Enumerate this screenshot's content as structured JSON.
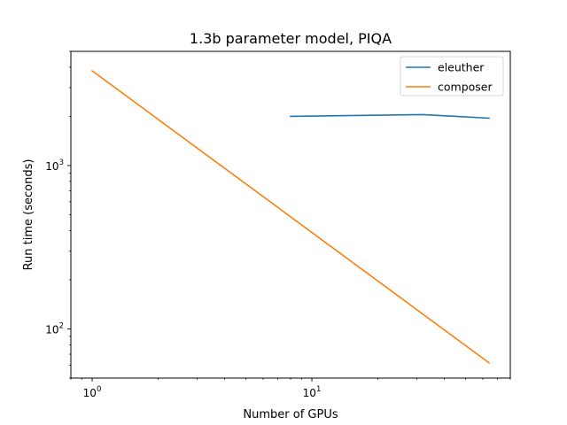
{
  "chart_data": {
    "type": "line",
    "title": "1.3b parameter model, PIQA",
    "xlabel": "Number of GPUs",
    "ylabel": "Run time (seconds)",
    "xscale": "log",
    "yscale": "log",
    "xlim": [
      0.8,
      80
    ],
    "ylim": [
      50,
      5000
    ],
    "grid": false,
    "legend_position": "top-right",
    "x_ticks": [
      {
        "value": 1,
        "base": "10",
        "exp": "0"
      },
      {
        "value": 10,
        "base": "10",
        "exp": "1"
      }
    ],
    "y_ticks": [
      {
        "value": 100,
        "base": "10",
        "exp": "2"
      },
      {
        "value": 1000,
        "base": "10",
        "exp": "3"
      }
    ],
    "series": [
      {
        "name": "eleuther",
        "color": "#1f77b4",
        "x": [
          8,
          32,
          64
        ],
        "y": [
          2000,
          2050,
          1950
        ]
      },
      {
        "name": "composer",
        "color": "#ff7f0e",
        "x": [
          1,
          64
        ],
        "y": [
          3800,
          62
        ]
      }
    ]
  }
}
